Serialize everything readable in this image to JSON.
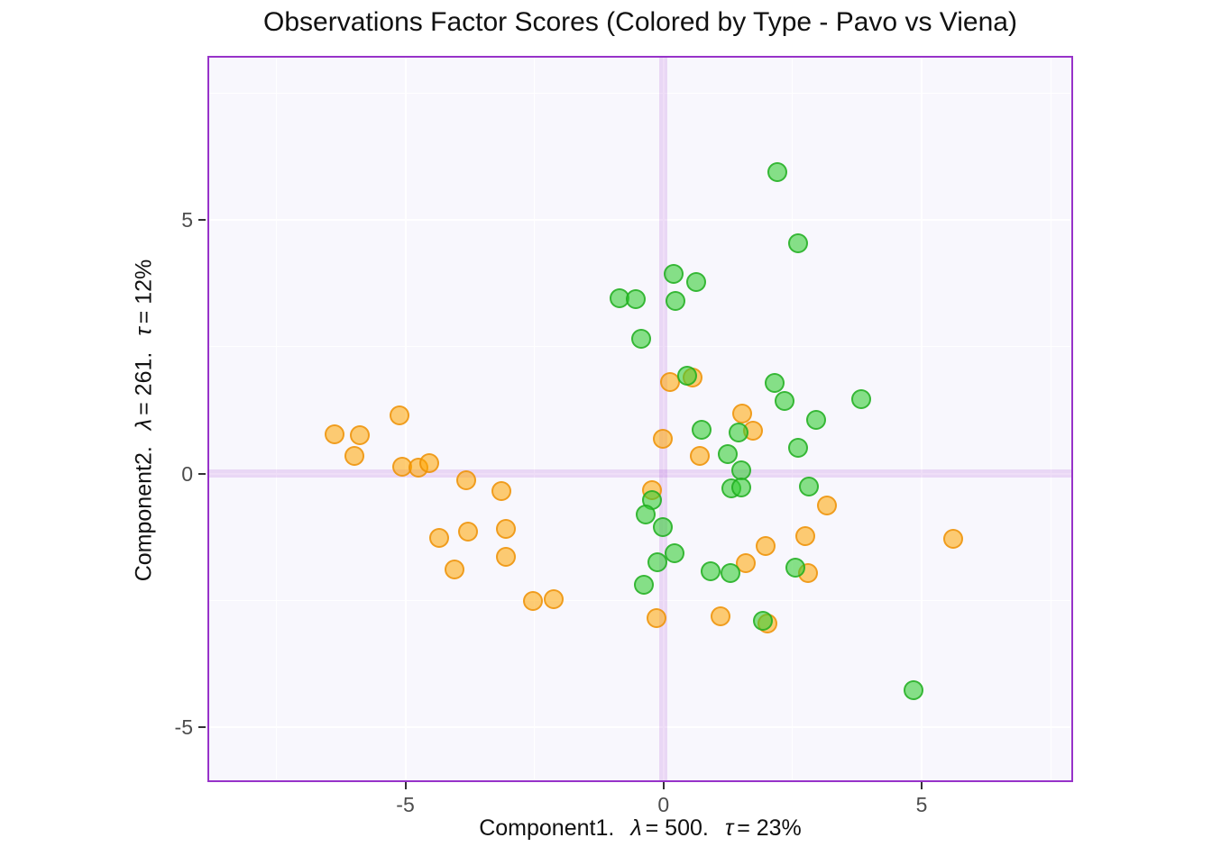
{
  "title": "Observations Factor Scores (Colored by Type - Pavo vs Viena)",
  "x_axis": {
    "name_part": "Component1.",
    "lambda_symbol": "λ",
    "lambda_eq": "= 500.",
    "tau_symbol": "τ",
    "tau_eq": "= 23%"
  },
  "y_axis": {
    "name_part": "Component2.",
    "lambda_symbol": "λ",
    "lambda_eq": "= 261.",
    "tau_symbol": "τ",
    "tau_eq": "= 12%"
  },
  "colors": {
    "panel_background": "#f8f7fd",
    "panel_border": "#9733c9",
    "gridline": "#ffffff",
    "crosshair_band": "rgba(153,51,204,0.16)",
    "orange_fill": "rgba(255,165,0,0.55)",
    "orange_stroke": "rgba(235,140,0,0.75)",
    "green_fill": "rgba(50,205,50,0.58)",
    "green_stroke": "rgba(30,170,30,0.78)",
    "tick_text": "#4d4d4d",
    "title_text": "#111111"
  },
  "chart_data": {
    "type": "scatter",
    "title": "Observations Factor Scores (Colored by Type - Pavo vs Viena)",
    "xlabel": "Component1.  λ = 500.  τ = 23%",
    "ylabel": "Component2.  λ = 261.  τ = 12%",
    "xlim": [
      -8.8,
      7.9
    ],
    "ylim": [
      -6.05,
      8.2
    ],
    "grid": true,
    "legend": "none",
    "x_ticks": [
      {
        "v": -5,
        "label": "-5"
      },
      {
        "v": 0,
        "label": "0"
      },
      {
        "v": 5,
        "label": "5"
      }
    ],
    "y_ticks": [
      {
        "v": 5,
        "label": "5"
      },
      {
        "v": 0,
        "label": "0"
      },
      {
        "v": -5,
        "label": "-5"
      }
    ],
    "x_major_gridlines": [
      -5,
      0,
      5
    ],
    "x_minor_gridlines": [
      -7.5,
      -2.5,
      2.5,
      7.5
    ],
    "y_major_gridlines": [
      -5,
      0,
      5
    ],
    "y_minor_gridlines": [
      -2.5,
      2.5,
      7.5
    ],
    "crosshair": {
      "x": 0,
      "y": 0
    },
    "series": [
      {
        "name": "orange-group",
        "fill": "rgba(255,165,0,0.55)",
        "stroke": "rgba(235,140,0,0.75)",
        "points": [
          [
            -6.38,
            0.78
          ],
          [
            -5.89,
            0.76
          ],
          [
            -5.98,
            0.34
          ],
          [
            -5.12,
            1.15
          ],
          [
            -5.07,
            0.14
          ],
          [
            -4.74,
            0.12
          ],
          [
            -4.53,
            0.21
          ],
          [
            -3.83,
            -0.14
          ],
          [
            -3.14,
            -0.35
          ],
          [
            -4.34,
            -1.27
          ],
          [
            -3.78,
            -1.15
          ],
          [
            -3.05,
            -1.1
          ],
          [
            -3.05,
            -1.64
          ],
          [
            -4.04,
            -1.89
          ],
          [
            -2.53,
            -2.51
          ],
          [
            -2.12,
            -2.47
          ],
          [
            0.56,
            1.9
          ],
          [
            0.12,
            1.8
          ],
          [
            1.52,
            1.19
          ],
          [
            1.73,
            0.85
          ],
          [
            -0.02,
            0.69
          ],
          [
            0.7,
            0.35
          ],
          [
            -0.23,
            -0.33
          ],
          [
            3.16,
            -0.63
          ],
          [
            2.74,
            -1.24
          ],
          [
            1.97,
            -1.43
          ],
          [
            1.59,
            -1.77
          ],
          [
            2.8,
            -1.96
          ],
          [
            -0.14,
            -2.86
          ],
          [
            1.11,
            -2.82
          ],
          [
            2.02,
            -2.95
          ],
          [
            5.61,
            -1.29
          ]
        ]
      },
      {
        "name": "green-group",
        "fill": "rgba(50,205,50,0.58)",
        "stroke": "rgba(30,170,30,0.78)",
        "points": [
          [
            2.21,
            5.95
          ],
          [
            2.61,
            4.54
          ],
          [
            0.19,
            3.94
          ],
          [
            0.64,
            3.78
          ],
          [
            -0.85,
            3.46
          ],
          [
            -0.54,
            3.43
          ],
          [
            0.24,
            3.41
          ],
          [
            -0.44,
            2.65
          ],
          [
            0.45,
            1.92
          ],
          [
            2.16,
            1.78
          ],
          [
            2.35,
            1.43
          ],
          [
            3.83,
            1.46
          ],
          [
            2.96,
            1.05
          ],
          [
            0.73,
            0.87
          ],
          [
            1.45,
            0.81
          ],
          [
            2.61,
            0.51
          ],
          [
            1.24,
            0.38
          ],
          [
            1.5,
            0.07
          ],
          [
            -0.23,
            -0.52
          ],
          [
            -0.35,
            -0.81
          ],
          [
            -0.02,
            -1.06
          ],
          [
            1.31,
            -0.3
          ],
          [
            1.51,
            -0.27
          ],
          [
            2.82,
            -0.26
          ],
          [
            0.21,
            -1.57
          ],
          [
            -0.12,
            -1.75
          ],
          [
            0.92,
            -1.93
          ],
          [
            1.29,
            -1.96
          ],
          [
            2.56,
            -1.86
          ],
          [
            -0.38,
            -2.19
          ],
          [
            1.92,
            -2.9
          ],
          [
            4.84,
            -4.28
          ]
        ]
      }
    ]
  }
}
